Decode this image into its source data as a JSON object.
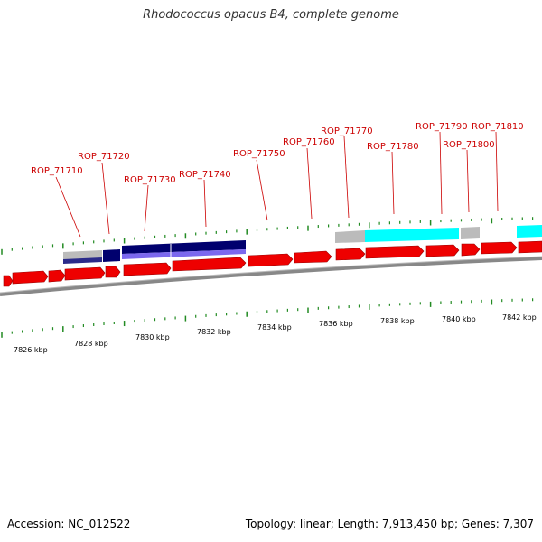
{
  "title": "Rhodococcus opacus B4, complete genome",
  "footer": {
    "accession": "Accession: NC_012522",
    "stats": "Topology: linear; Length: 7,913,450 bp; Genes: 7,307"
  },
  "colors": {
    "cds": "#ee0000",
    "navy": "#00006e",
    "lavender": "#7b68ee",
    "cyan": "#00ffff",
    "gray": "#bbbbbb",
    "tick": "#228b22",
    "label": "#cc0000",
    "backbone": "#888888"
  },
  "gene_labels": [
    "ROP_71710",
    "ROP_71720",
    "ROP_71730",
    "ROP_71740",
    "ROP_71750",
    "ROP_71760",
    "ROP_71770",
    "ROP_71780",
    "ROP_71790",
    "ROP_71800",
    "ROP_71810"
  ],
  "scale_labels": [
    "7826 kbp",
    "7828 kbp",
    "7830 kbp",
    "7832 kbp",
    "7834 kbp",
    "7836 kbp",
    "7838 kbp",
    "7840 kbp",
    "7842 kbp"
  ]
}
